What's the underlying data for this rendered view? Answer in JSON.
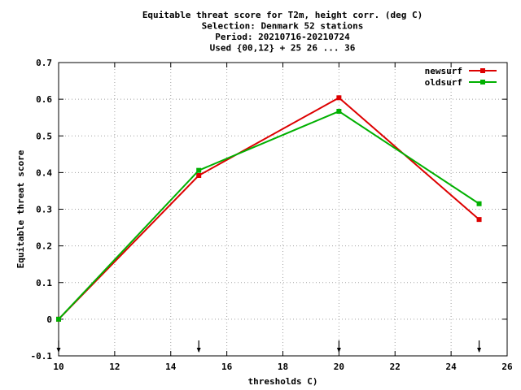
{
  "chart_data": {
    "type": "line",
    "title_lines": [
      "Equitable threat score  for T2m, height corr. (deg C)",
      "Selection: Denmark     52 stations",
      "Period: 20210716-20210724",
      "Used {00,12} + 25 26 ... 36"
    ],
    "xlabel": "thresholds C)",
    "ylabel": "Equitable threat score",
    "xlim": [
      10,
      26
    ],
    "ylim": [
      -0.1,
      0.7
    ],
    "xticks": [
      10,
      12,
      14,
      16,
      18,
      20,
      22,
      24,
      26
    ],
    "yticks": [
      -0.1,
      0,
      0.1,
      0.2,
      0.3,
      0.4,
      0.5,
      0.6,
      0.7
    ],
    "grid": true,
    "legend_position": "top-right",
    "threshold_markers": [
      10,
      15,
      20,
      25
    ],
    "series": [
      {
        "name": "newsurf",
        "color": "#dd0000",
        "x": [
          10,
          15,
          20,
          25
        ],
        "y": [
          0.0,
          0.392,
          0.604,
          0.272
        ]
      },
      {
        "name": "oldsurf",
        "color": "#00b000",
        "x": [
          10,
          15,
          20,
          25
        ],
        "y": [
          0.0,
          0.406,
          0.567,
          0.315
        ]
      }
    ]
  }
}
